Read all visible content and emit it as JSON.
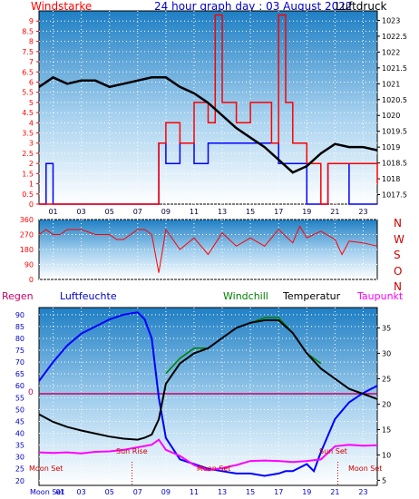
{
  "header": {
    "windstarke": "Windstarke",
    "title": "24 hour graph day : 03 August 2022",
    "luftdruck": "Luftdruck"
  },
  "panel2": {
    "compass": [
      "N",
      "W",
      "S",
      "O",
      "N"
    ]
  },
  "panel3": {
    "regen": "Regen",
    "luftfeuchte": "Luftfeuchte",
    "windchill": "Windchill",
    "temperatur": "Temperatur",
    "taupunkt": "Taupunkt",
    "moon_set_left": "Moon Set",
    "moon_set_bottom_left": "Moon Set",
    "moon_set_mid": "Moon Set",
    "moon_set_right": "Moon Set",
    "sun_rise": "Sun Rise",
    "sun_set": "Sun Set",
    "zero_label": "0"
  },
  "colors": {
    "wind_red": "#ff0000",
    "gust_blue": "#0000ff",
    "pressure": "#000000",
    "humidity": "#0000ff",
    "windchill": "#008000",
    "temperature": "#000000",
    "dewpoint": "#ff00ff",
    "rain_line": "#cc0066",
    "sky_top": "#1f7fc4",
    "sky_bottom": "#ffffff"
  },
  "chart_data": [
    {
      "type": "line",
      "name": "wind-pressure",
      "x_ticks": [
        "01",
        "03",
        "05",
        "07",
        "09",
        "11",
        "13",
        "15",
        "17",
        "19",
        "21",
        "23"
      ],
      "y_left_ticks": [
        "0",
        "0.5",
        "1",
        "1.5",
        "2",
        "2.5",
        "3",
        "3.5",
        "4",
        "4.5",
        "5",
        "5.5",
        "6",
        "6.5",
        "7",
        "7.5",
        "8",
        "8.5",
        "9"
      ],
      "y_right_ticks": [
        "1017.5",
        "1018",
        "1018.5",
        "1019",
        "1019.5",
        "1020",
        "1020.5",
        "1021",
        "1021.5",
        "1022",
        "1022.5",
        "1023"
      ],
      "ylim_left": [
        0,
        9.5
      ],
      "ylim_right": [
        1017.2,
        1023.3
      ],
      "pressure": {
        "x": [
          0,
          1,
          2,
          3,
          4,
          5,
          6,
          7,
          8,
          9,
          10,
          11,
          12,
          13,
          14,
          15,
          16,
          17,
          18,
          19,
          20,
          21,
          22,
          23,
          24
        ],
        "y": [
          1020.9,
          1021.2,
          1021.0,
          1021.1,
          1021.1,
          1020.9,
          1021.0,
          1021.1,
          1021.2,
          1021.2,
          1020.9,
          1020.7,
          1020.4,
          1020.0,
          1019.6,
          1019.3,
          1019.0,
          1018.6,
          1018.2,
          1018.4,
          1018.8,
          1019.1,
          1019.0,
          1019.0,
          1018.9
        ]
      },
      "gust_blue": {
        "x": [
          0,
          0.5,
          1,
          2,
          3,
          4,
          5,
          6,
          7,
          8,
          8.5,
          9,
          10,
          11,
          12,
          13,
          14,
          15,
          16,
          17,
          18,
          19,
          20,
          20.5,
          21,
          21.5,
          22,
          23,
          24
        ],
        "y": [
          0,
          2,
          0,
          0,
          0,
          0,
          0,
          0,
          0,
          0,
          3,
          2,
          3,
          2,
          3,
          3,
          3,
          3,
          3,
          2,
          2,
          0,
          0,
          2,
          2,
          2,
          0,
          0,
          0
        ]
      },
      "wind_red": {
        "x": [
          0,
          1,
          2,
          3,
          4,
          5,
          6,
          7,
          8,
          8.5,
          9,
          10,
          11,
          12,
          12.5,
          13,
          14,
          15,
          16,
          16.5,
          17,
          17.5,
          18,
          19,
          20,
          20.5,
          21,
          22,
          23,
          24
        ],
        "y": [
          0,
          0,
          0,
          0,
          0,
          0,
          0,
          0,
          0,
          3,
          4,
          3,
          5,
          4,
          9.3,
          5,
          4,
          5,
          5,
          3,
          9.3,
          5,
          3,
          2,
          0,
          2,
          2,
          2,
          2,
          1
        ]
      }
    },
    {
      "type": "line",
      "name": "wind-direction",
      "y_ticks": [
        "0",
        "90",
        "180",
        "270",
        "360"
      ],
      "ylim": [
        0,
        360
      ],
      "direction": {
        "x": [
          0,
          0.5,
          1,
          1.5,
          2,
          3,
          4,
          5,
          5.5,
          6,
          7,
          7.5,
          8,
          8.5,
          9,
          10,
          11,
          12,
          13,
          14,
          15,
          16,
          17,
          18,
          18.5,
          19,
          20,
          21,
          21.5,
          22,
          23,
          24
        ],
        "y": [
          270,
          300,
          270,
          270,
          300,
          300,
          270,
          270,
          240,
          240,
          300,
          300,
          270,
          40,
          300,
          180,
          250,
          150,
          280,
          200,
          250,
          200,
          300,
          220,
          320,
          250,
          290,
          240,
          150,
          230,
          220,
          200
        ]
      }
    },
    {
      "type": "line",
      "name": "humidity-temperature",
      "x_ticks": [
        "01",
        "03",
        "05",
        "07",
        "09",
        "11",
        "13",
        "15",
        "17",
        "19",
        "21",
        "23"
      ],
      "y_left_ticks": [
        "20",
        "25",
        "30",
        "35",
        "40",
        "45",
        "50",
        "55",
        "60",
        "65",
        "70",
        "75",
        "80",
        "85",
        "90"
      ],
      "y_right_ticks": [
        "5",
        "10",
        "15",
        "20",
        "25",
        "30",
        "35"
      ],
      "ylim_left": [
        18,
        93
      ],
      "ylim_right": [
        4,
        39
      ],
      "humidity": {
        "x": [
          0,
          1,
          2,
          3,
          4,
          5,
          6,
          7,
          7.5,
          8,
          8.5,
          9,
          10,
          11,
          12,
          13,
          14,
          15,
          16,
          17,
          17.5,
          18,
          19,
          19.5,
          20,
          21,
          22,
          23,
          24
        ],
        "y": [
          62,
          70,
          77,
          82,
          85,
          88,
          90,
          91,
          88,
          80,
          55,
          38,
          29,
          27,
          25,
          24,
          23,
          23,
          22,
          23,
          24,
          24,
          27,
          24,
          32,
          46,
          53,
          57,
          60
        ]
      },
      "temperature": {
        "x": [
          0,
          1,
          2,
          3,
          4,
          5,
          6,
          7,
          7.5,
          8,
          8.5,
          9,
          10,
          11,
          12,
          13,
          14,
          15,
          16,
          17,
          18,
          19,
          20,
          21,
          22,
          23,
          24
        ],
        "y": [
          18,
          16.5,
          15.5,
          14.8,
          14.2,
          13.6,
          13.2,
          13,
          13.4,
          14,
          17,
          24,
          28,
          30,
          31,
          33,
          35,
          36,
          36.5,
          36.5,
          34,
          30,
          27,
          25,
          23,
          22,
          21
        ]
      },
      "windchill": {
        "x": [
          9,
          10,
          11,
          12,
          13,
          14,
          15,
          16,
          17,
          18,
          19,
          20
        ],
        "y": [
          26,
          29,
          31,
          31,
          33,
          35,
          36,
          37,
          37,
          34,
          30,
          28
        ]
      },
      "dewpoint": {
        "x": [
          0,
          1,
          2,
          3,
          4,
          5,
          6,
          7,
          8,
          8.5,
          9,
          10,
          11,
          12,
          13,
          14,
          15,
          16,
          17,
          18,
          19,
          20,
          21,
          22,
          23,
          24
        ],
        "y": [
          10.5,
          10.4,
          10.5,
          10.3,
          10.6,
          10.7,
          11,
          11.5,
          12,
          13,
          11,
          9.8,
          8,
          7,
          7.4,
          8,
          8.8,
          8.9,
          8.8,
          8.6,
          8.8,
          9.1,
          11.7,
          12,
          11.8,
          11.9
        ]
      },
      "rain_zero": 0
    }
  ]
}
